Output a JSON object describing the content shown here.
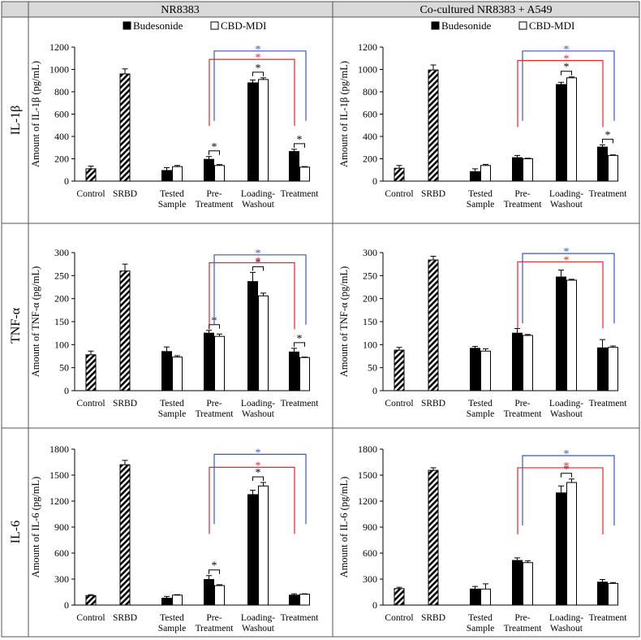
{
  "header": {
    "col1": "NR8383",
    "col2": "Co-cultured NR8383 + A549"
  },
  "rows": [
    {
      "label": "IL-1β"
    },
    {
      "label": "TNF-α"
    },
    {
      "label": "IL-6"
    }
  ],
  "colors": {
    "bar": "#000000",
    "outline": "#000000",
    "sig_red": "#e8232a",
    "sig_blue": "#3a56c5",
    "sig_black": "#000000",
    "header_bg": "#d9d9d9"
  },
  "sig_symbol": "*",
  "chart_data": [
    {
      "id": "il1b-nr8383",
      "type": "bar",
      "row": 0,
      "col": 0,
      "ylabel": "Amount of IL-1β (pg/mL)",
      "ylim": [
        0,
        1200
      ],
      "yticks": [
        0,
        200,
        400,
        600,
        800,
        1000,
        1200
      ],
      "legend": [
        "Budesonide",
        "CBD-MDI"
      ],
      "categories": [
        [
          "Control"
        ],
        [
          "SRBD"
        ],
        [
          "Tested",
          "Sample"
        ],
        [
          "Pre-",
          "Treatment"
        ],
        [
          "Loading-",
          "Washout"
        ],
        [
          "Treatment"
        ]
      ],
      "single": [
        {
          "cat": 0,
          "value": 110,
          "err": 25
        },
        {
          "cat": 1,
          "value": 960,
          "err": 45
        }
      ],
      "series": [
        {
          "name": "Budesonide",
          "values": [
            null,
            null,
            95,
            195,
            880,
            265
          ],
          "errors": [
            null,
            null,
            25,
            25,
            25,
            20
          ]
        },
        {
          "name": "CBD-MDI",
          "values": [
            null,
            null,
            130,
            140,
            910,
            125
          ],
          "errors": [
            null,
            null,
            10,
            8,
            15,
            5
          ]
        }
      ],
      "pair_sig": [
        3,
        4,
        5
      ],
      "brackets": [
        {
          "from": 3,
          "to": 5,
          "color": "red",
          "label": "*",
          "y": 1090
        },
        {
          "from": 3,
          "to": 5,
          "color": "blue",
          "label": "*",
          "y": 1165
        }
      ]
    },
    {
      "id": "il1b-cocult",
      "type": "bar",
      "row": 0,
      "col": 1,
      "ylabel": "Amount of IL-1β (pg/mL)",
      "ylim": [
        0,
        1200
      ],
      "yticks": [
        0,
        200,
        400,
        600,
        800,
        1000,
        1200
      ],
      "legend": [
        "Budesonide",
        "CBD-MDI"
      ],
      "categories": [
        [
          "Control"
        ],
        [
          "SRBD"
        ],
        [
          "Tested",
          "Sample"
        ],
        [
          "Pre-",
          "Treatment"
        ],
        [
          "Loading-",
          "Washout"
        ],
        [
          "Treatment"
        ]
      ],
      "single": [
        {
          "cat": 0,
          "value": 115,
          "err": 25
        },
        {
          "cat": 1,
          "value": 995,
          "err": 45
        }
      ],
      "series": [
        {
          "name": "Budesonide",
          "values": [
            null,
            null,
            85,
            210,
            865,
            305
          ],
          "errors": [
            null,
            null,
            25,
            20,
            20,
            20
          ]
        },
        {
          "name": "CBD-MDI",
          "values": [
            null,
            null,
            140,
            200,
            925,
            230
          ],
          "errors": [
            null,
            null,
            10,
            5,
            8,
            5
          ]
        }
      ],
      "pair_sig": [
        4,
        5
      ],
      "brackets": [
        {
          "from": 3,
          "to": 5,
          "color": "red",
          "label": "*",
          "y": 1080
        },
        {
          "from": 3,
          "to": 5,
          "color": "blue",
          "label": "*",
          "y": 1165
        }
      ]
    },
    {
      "id": "tnfa-nr8383",
      "type": "bar",
      "row": 1,
      "col": 0,
      "ylabel": "Amount of TNF-α (pg/mL)",
      "ylim": [
        0,
        300
      ],
      "yticks": [
        0,
        50,
        100,
        150,
        200,
        250,
        300
      ],
      "legend": [],
      "categories": [
        [
          "Control"
        ],
        [
          "SRBD"
        ],
        [
          "Tested",
          "Sample"
        ],
        [
          "Pre-",
          "Treatment"
        ],
        [
          "Loading-",
          "Washout"
        ],
        [
          "Treatment"
        ]
      ],
      "single": [
        {
          "cat": 0,
          "value": 78,
          "err": 8
        },
        {
          "cat": 1,
          "value": 260,
          "err": 15
        }
      ],
      "series": [
        {
          "name": "Budesonide",
          "values": [
            null,
            null,
            85,
            125,
            237,
            84
          ],
          "errors": [
            null,
            null,
            10,
            6,
            20,
            8
          ]
        },
        {
          "name": "CBD-MDI",
          "values": [
            null,
            null,
            73,
            118,
            206,
            72
          ],
          "errors": [
            null,
            null,
            3,
            5,
            6,
            1
          ]
        }
      ],
      "pair_sig": [
        3,
        4,
        5
      ],
      "brackets": [
        {
          "from": 3,
          "to": 5,
          "color": "red",
          "label": "*",
          "y": 278
        },
        {
          "from": 3,
          "to": 5,
          "color": "blue",
          "label": "*",
          "y": 295
        }
      ]
    },
    {
      "id": "tnfa-cocult",
      "type": "bar",
      "row": 1,
      "col": 1,
      "ylabel": "Amount of TNF-α (pg/mL)",
      "ylim": [
        0,
        300
      ],
      "yticks": [
        0,
        50,
        100,
        150,
        200,
        250,
        300
      ],
      "legend": [],
      "categories": [
        [
          "Control"
        ],
        [
          "SRBD"
        ],
        [
          "Tested",
          "Sample"
        ],
        [
          "Pre-",
          "Treatment"
        ],
        [
          "Loading-",
          "Washout"
        ],
        [
          "Treatment"
        ]
      ],
      "single": [
        {
          "cat": 0,
          "value": 88,
          "err": 6
        },
        {
          "cat": 1,
          "value": 284,
          "err": 8
        }
      ],
      "series": [
        {
          "name": "Budesonide",
          "values": [
            null,
            null,
            92,
            125,
            247,
            93
          ],
          "errors": [
            null,
            null,
            4,
            10,
            15,
            18
          ]
        },
        {
          "name": "CBD-MDI",
          "values": [
            null,
            null,
            86,
            120,
            240,
            94
          ],
          "errors": [
            null,
            null,
            5,
            2,
            2,
            3
          ]
        }
      ],
      "pair_sig": [],
      "brackets": [
        {
          "from": 3,
          "to": 5,
          "color": "red",
          "label": "*",
          "y": 280
        },
        {
          "from": 3,
          "to": 5,
          "color": "blue",
          "label": "*",
          "y": 298
        }
      ]
    },
    {
      "id": "il6-nr8383",
      "type": "bar",
      "row": 2,
      "col": 0,
      "ylabel": "Amount of IL-6 (pg/mL)",
      "ylim": [
        0,
        1800
      ],
      "yticks": [
        0,
        300,
        600,
        900,
        1200,
        1500,
        1800
      ],
      "legend": [],
      "categories": [
        [
          "Control"
        ],
        [
          "SRBD"
        ],
        [
          "Tested",
          "Sample"
        ],
        [
          "Pre-",
          "Treatment"
        ],
        [
          "Loading-",
          "Washout"
        ],
        [
          "Treatment"
        ]
      ],
      "single": [
        {
          "cat": 0,
          "value": 110,
          "err": 10
        },
        {
          "cat": 1,
          "value": 1620,
          "err": 50
        }
      ],
      "series": [
        {
          "name": "Budesonide",
          "values": [
            null,
            null,
            80,
            295,
            1275,
            115
          ],
          "errors": [
            null,
            null,
            20,
            45,
            50,
            15
          ]
        },
        {
          "name": "CBD-MDI",
          "values": [
            null,
            null,
            115,
            225,
            1375,
            125
          ],
          "errors": [
            null,
            null,
            5,
            10,
            40,
            5
          ]
        }
      ],
      "pair_sig": [
        3,
        4
      ],
      "brackets": [
        {
          "from": 3,
          "to": 5,
          "color": "red",
          "label": "*",
          "y": 1590
        },
        {
          "from": 3,
          "to": 5,
          "color": "blue",
          "label": "*",
          "y": 1740
        }
      ]
    },
    {
      "id": "il6-cocult",
      "type": "bar",
      "row": 2,
      "col": 1,
      "ylabel": "Amount of IL-6 (pg/mL)",
      "ylim": [
        0,
        1800
      ],
      "yticks": [
        0,
        300,
        600,
        900,
        1200,
        1500,
        1800
      ],
      "legend": [],
      "categories": [
        [
          "Control"
        ],
        [
          "SRBD"
        ],
        [
          "Tested",
          "Sample"
        ],
        [
          "Pre-",
          "Treatment"
        ],
        [
          "Loading-",
          "Washout"
        ],
        [
          "Treatment"
        ]
      ],
      "single": [
        {
          "cat": 0,
          "value": 190,
          "err": 15
        },
        {
          "cat": 1,
          "value": 1555,
          "err": 30
        }
      ],
      "series": [
        {
          "name": "Budesonide",
          "values": [
            null,
            null,
            185,
            515,
            1295,
            265
          ],
          "errors": [
            null,
            null,
            30,
            30,
            80,
            30
          ]
        },
        {
          "name": "CBD-MDI",
          "values": [
            null,
            null,
            185,
            490,
            1415,
            250
          ],
          "errors": [
            null,
            null,
            60,
            20,
            40,
            10
          ]
        }
      ],
      "pair_sig": [
        4
      ],
      "brackets": [
        {
          "from": 3,
          "to": 5,
          "color": "red",
          "label": "*",
          "y": 1585
        },
        {
          "from": 3,
          "to": 5,
          "color": "blue",
          "label": "*",
          "y": 1725
        }
      ]
    }
  ]
}
